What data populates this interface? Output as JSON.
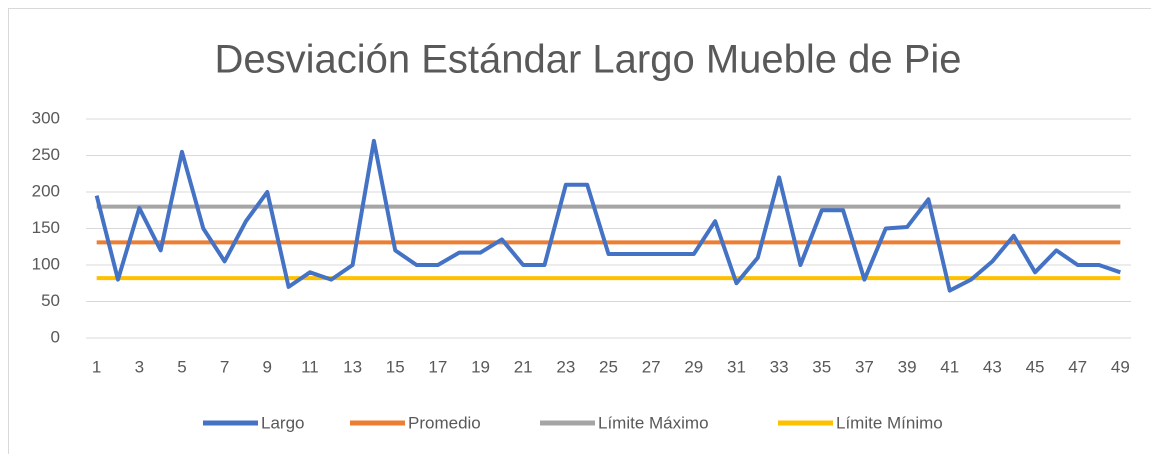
{
  "chart_data": {
    "type": "line",
    "title": "Desviación Estándar Largo Mueble de Pie",
    "categories": [
      1,
      null,
      3,
      null,
      5,
      null,
      7,
      null,
      9,
      null,
      11,
      null,
      13,
      null,
      15,
      null,
      17,
      null,
      19,
      null,
      21,
      null,
      23,
      null,
      25,
      null,
      27,
      null,
      29,
      null,
      31,
      null,
      33,
      null,
      35,
      null,
      37,
      null,
      39,
      null,
      41,
      null,
      43,
      null,
      45,
      null,
      47,
      null,
      49
    ],
    "series": [
      {
        "name": "Largo",
        "color": "#4472c4",
        "values": [
          195,
          80,
          178,
          120,
          255,
          150,
          105,
          160,
          200,
          70,
          90,
          80,
          100,
          270,
          120,
          100,
          100,
          117,
          117,
          135,
          100,
          100,
          210,
          210,
          115,
          115,
          115,
          115,
          115,
          160,
          75,
          110,
          220,
          100,
          175,
          175,
          80,
          150,
          152,
          190,
          65,
          80,
          105,
          140,
          90,
          120,
          100,
          100,
          90
        ]
      },
      {
        "name": "Promedio",
        "color": "#ed7d31",
        "values": [
          131,
          131,
          131,
          131,
          131,
          131,
          131,
          131,
          131,
          131,
          131,
          131,
          131,
          131,
          131,
          131,
          131,
          131,
          131,
          131,
          131,
          131,
          131,
          131,
          131,
          131,
          131,
          131,
          131,
          131,
          131,
          131,
          131,
          131,
          131,
          131,
          131,
          131,
          131,
          131,
          131,
          131,
          131,
          131,
          131,
          131,
          131,
          131,
          131
        ]
      },
      {
        "name": "Límite Máximo",
        "color": "#a5a5a5",
        "values": [
          180,
          180,
          180,
          180,
          180,
          180,
          180,
          180,
          180,
          180,
          180,
          180,
          180,
          180,
          180,
          180,
          180,
          180,
          180,
          180,
          180,
          180,
          180,
          180,
          180,
          180,
          180,
          180,
          180,
          180,
          180,
          180,
          180,
          180,
          180,
          180,
          180,
          180,
          180,
          180,
          180,
          180,
          180,
          180,
          180,
          180,
          180,
          180,
          180
        ]
      },
      {
        "name": "Límite Mínimo",
        "color": "#ffc000",
        "values": [
          82,
          82,
          82,
          82,
          82,
          82,
          82,
          82,
          82,
          82,
          82,
          82,
          82,
          82,
          82,
          82,
          82,
          82,
          82,
          82,
          82,
          82,
          82,
          82,
          82,
          82,
          82,
          82,
          82,
          82,
          82,
          82,
          82,
          82,
          82,
          82,
          82,
          82,
          82,
          82,
          82,
          82,
          82,
          82,
          82,
          82,
          82,
          82,
          82
        ]
      }
    ],
    "ylim": [
      0,
      300
    ],
    "yticks": [
      0,
      50,
      100,
      150,
      200,
      250,
      300
    ],
    "grid": true,
    "legend": "bottom"
  }
}
